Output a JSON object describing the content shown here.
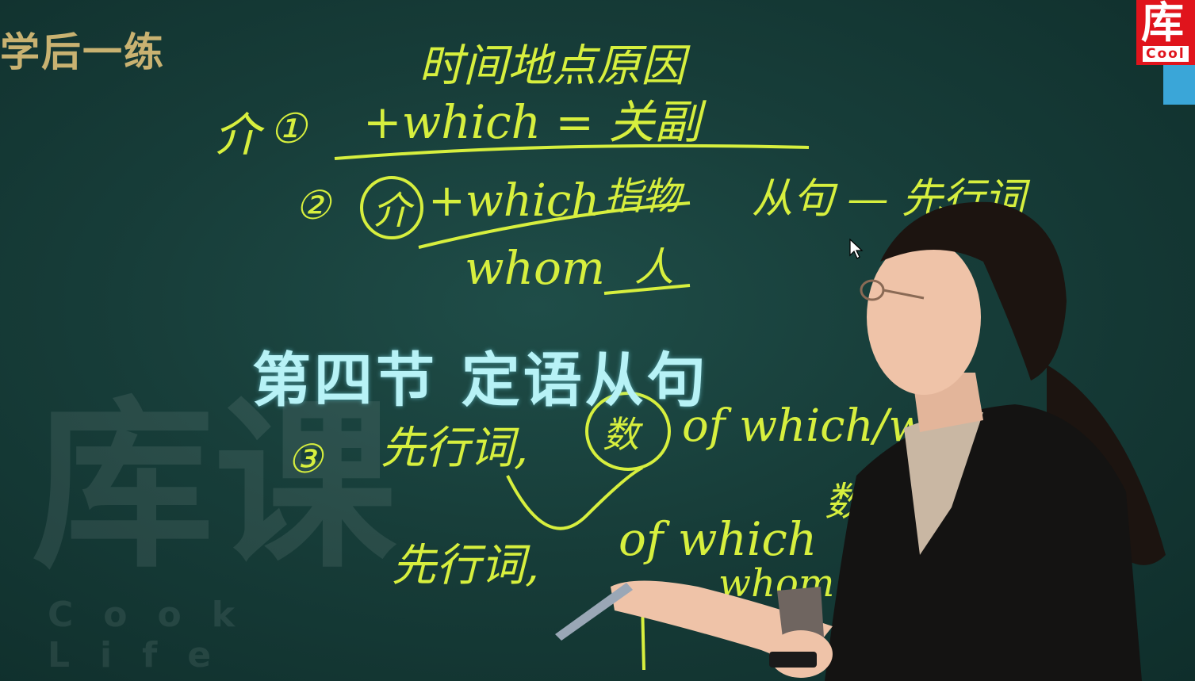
{
  "section_tag": "学后一练",
  "main_title": "第四节 定语从句",
  "logo": {
    "char": "库",
    "sub": "Cool"
  },
  "watermark": {
    "big": "库课",
    "small": "Cook Life"
  },
  "board": {
    "line1": "时间地点原因",
    "line2_prefix": "介",
    "line2_num": "①",
    "line2_main": "+which = 关副",
    "line3_num": "②",
    "line3_circle": "介",
    "line3_main": "+which",
    "line3_tail": "指物",
    "line3_right": "从句 — 先行词",
    "line4": "whom",
    "line4_tail": "人",
    "line5_num": "③",
    "line5_a": "先行词,",
    "line5_circle": "数",
    "line5_b": "of which/wh",
    "line6_a": "先行词,",
    "line6_b": "of which",
    "line6_c": "数",
    "line7": "whom"
  },
  "colors": {
    "board": "#173d39",
    "chalk": "#d7ef3e",
    "title": "#b7f2f6",
    "tag": "#c9b271",
    "logo": "#e0141c"
  }
}
